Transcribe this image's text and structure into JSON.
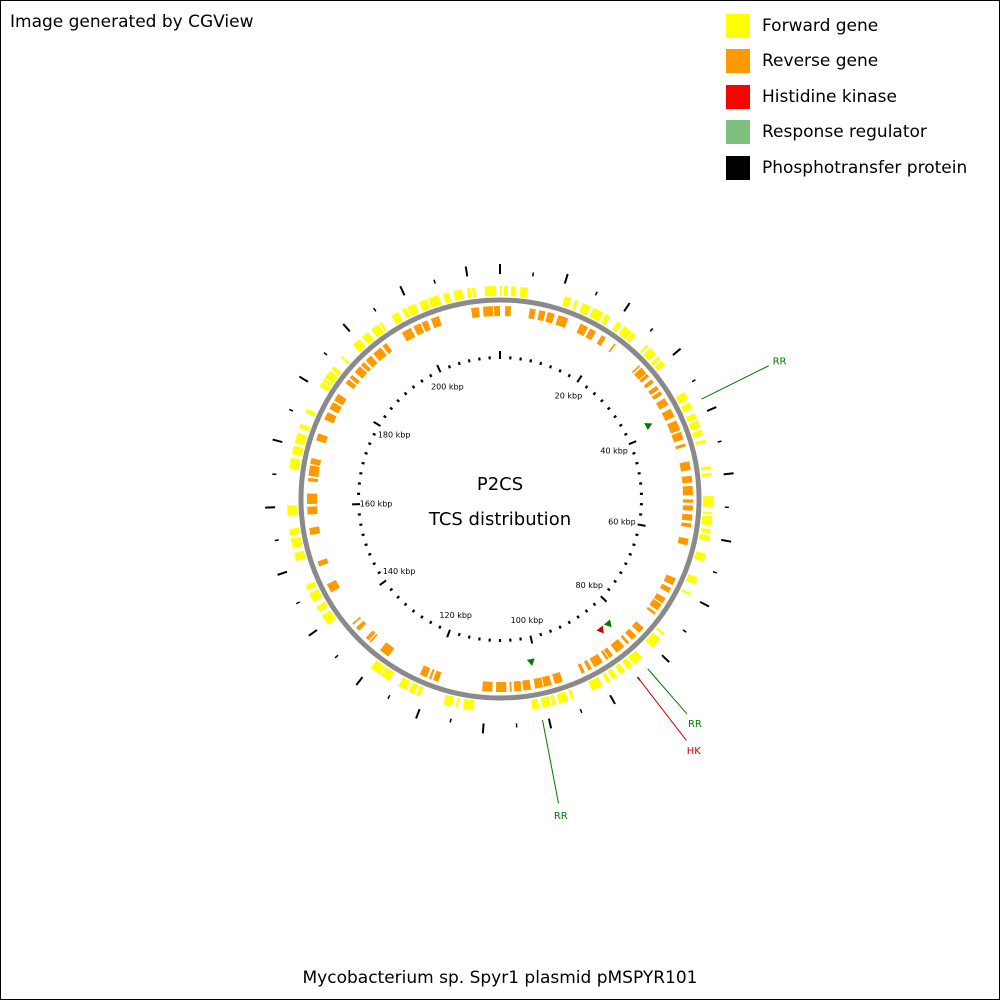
{
  "header": {
    "credit": "Image generated by CGView"
  },
  "legend": {
    "items": [
      {
        "label": "Forward gene",
        "color": "#ffff00"
      },
      {
        "label": "Reverse gene",
        "color": "#ff9900"
      },
      {
        "label": "Histidine kinase",
        "color": "#ff0000"
      },
      {
        "label": "Response regulator",
        "color": "#7fbf7f"
      },
      {
        "label": "Phosphotransfer protein",
        "color": "#000000"
      }
    ]
  },
  "map": {
    "center_title": "P2CS",
    "center_subtitle": "TCS distribution",
    "genome_length_kbp": 215,
    "scale_labels": [
      "20 kbp",
      "40 kbp",
      "60 kbp",
      "80 kbp",
      "100 kbp",
      "120 kbp",
      "140 kbp",
      "160 kbp",
      "180 kbp",
      "200 kbp"
    ],
    "colors": {
      "backbone": "#8a8a8a",
      "forward": "#ffff00",
      "reverse": "#ff9900",
      "histidine_kinase": "#cc0000",
      "response_regulator": "#007a00",
      "ticks": "#000000"
    },
    "tcs_features": [
      {
        "type": "RR",
        "label": "RR",
        "position_kbp": 38
      },
      {
        "type": "RR",
        "label": "RR",
        "position_kbp": 83
      },
      {
        "type": "HK",
        "label": "HK",
        "position_kbp": 85
      },
      {
        "type": "RR",
        "label": "RR",
        "position_kbp": 101
      }
    ]
  },
  "footer": {
    "plasmid_name": "Mycobacterium sp. Spyr1 plasmid pMSPYR101"
  }
}
